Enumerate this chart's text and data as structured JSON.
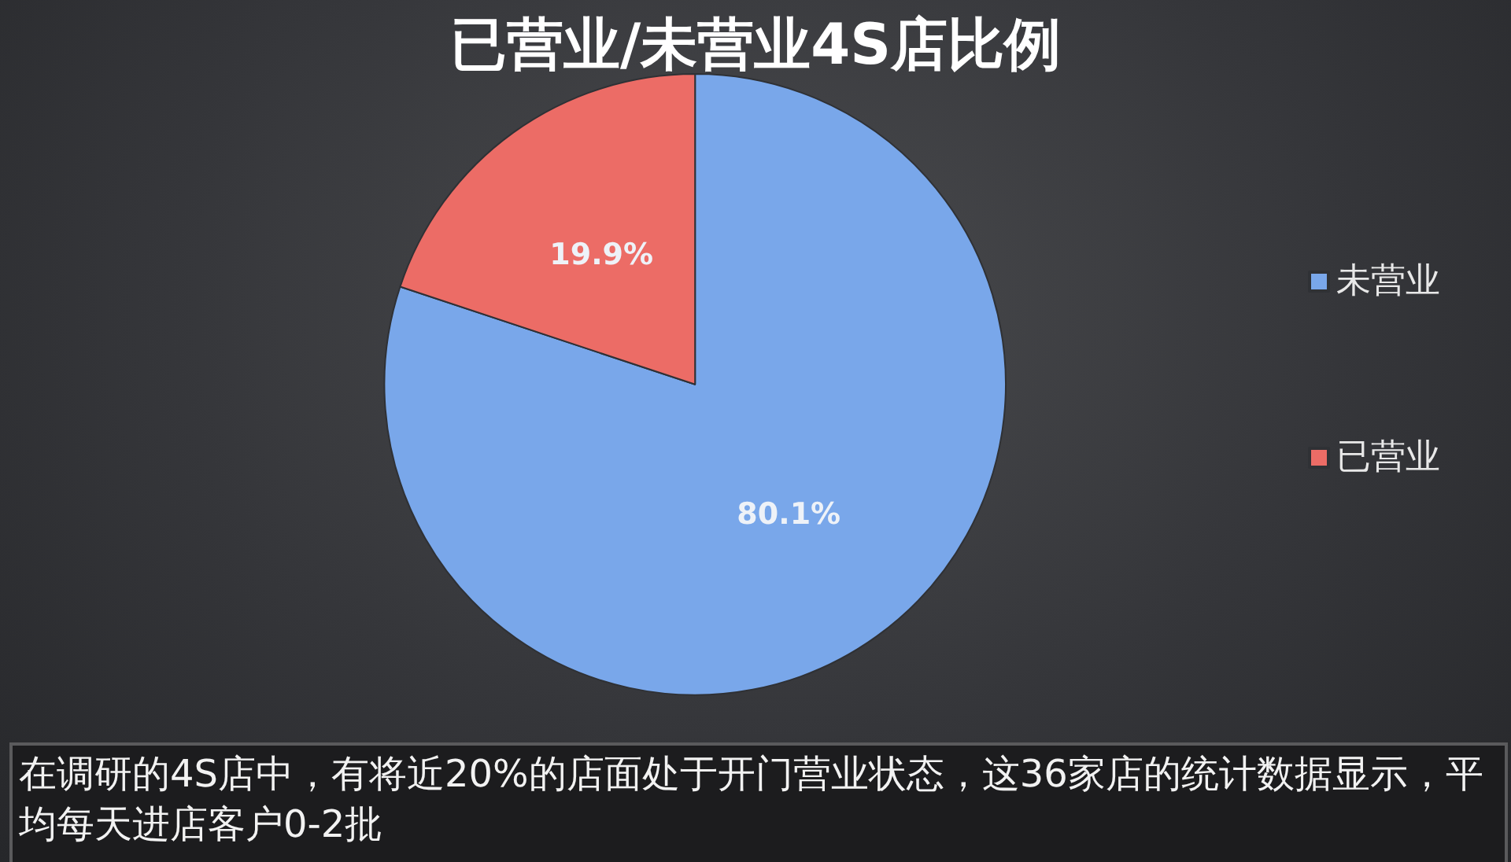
{
  "chart_data": {
    "type": "pie",
    "title": "已营业/未营业4S店比例",
    "categories": [
      "未营业",
      "已营业"
    ],
    "values": [
      80.1,
      19.9
    ],
    "colors": [
      "#79a7ea",
      "#ec6c66"
    ],
    "value_labels": [
      "80.1%",
      "19.9%"
    ],
    "legend": "right",
    "annotations": [
      "在调研的4S店中，有将近20%的店面处于开门营业状态，这36家店的统计数据显示，平均每天进店客户0-2批"
    ]
  }
}
